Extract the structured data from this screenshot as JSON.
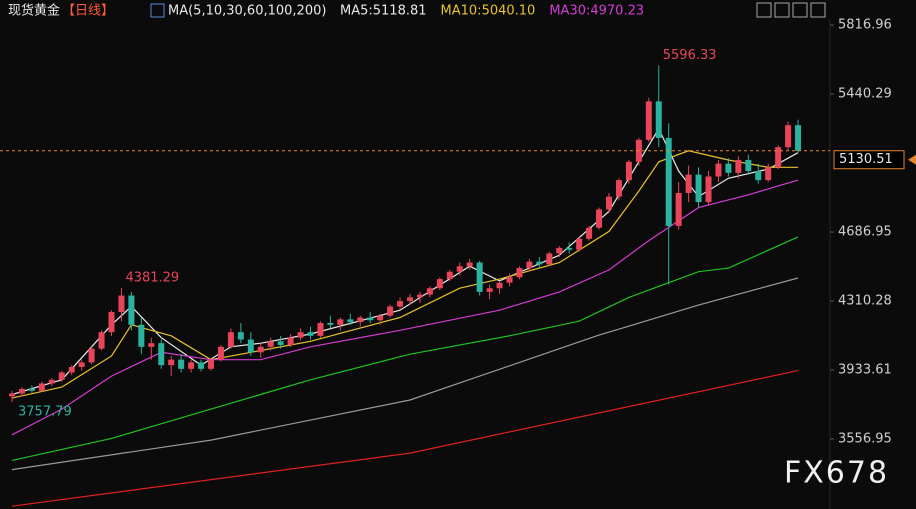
{
  "header": {
    "symbol": "现货黄金",
    "period": "【日线】",
    "ma_title": "MA(5,10,30,60,100,200)",
    "ma_values": [
      "MA5:5118.81",
      "MA10:5040.10",
      "MA30:4970.23"
    ],
    "ma_value_colors": [
      "#e8e8e8",
      "#e8c22a",
      "#d43bd4"
    ]
  },
  "watermark": "FX678",
  "chart_data": {
    "type": "candlestick",
    "up_color": "#e8455a",
    "down_color": "#2ab3a0",
    "ylim": [
      3174.7,
      5953.4
    ],
    "yticks": [
      3556.95,
      3933.61,
      4310.28,
      4686.95,
      5440.29,
      5816.96
    ],
    "last_price": 5130.51,
    "annotations": [
      5596.33,
      4381.29,
      3757.79
    ],
    "ohlc": [
      [
        3790,
        3820,
        3757.79,
        3805
      ],
      [
        3805,
        3840,
        3790,
        3830
      ],
      [
        3830,
        3850,
        3810,
        3820
      ],
      [
        3820,
        3870,
        3815,
        3860
      ],
      [
        3860,
        3890,
        3845,
        3880
      ],
      [
        3880,
        3930,
        3870,
        3920
      ],
      [
        3920,
        3960,
        3905,
        3950
      ],
      [
        3950,
        3990,
        3930,
        3975
      ],
      [
        3975,
        4060,
        3965,
        4050
      ],
      [
        4050,
        4150,
        4040,
        4140
      ],
      [
        4140,
        4260,
        4120,
        4250
      ],
      [
        4250,
        4381.29,
        4200,
        4340
      ],
      [
        4340,
        4360,
        4150,
        4180
      ],
      [
        4180,
        4220,
        4020,
        4060
      ],
      [
        4060,
        4110,
        3990,
        4080
      ],
      [
        4080,
        4100,
        3940,
        3960
      ],
      [
        3960,
        4010,
        3900,
        3990
      ],
      [
        3990,
        4020,
        3920,
        3940
      ],
      [
        3940,
        3990,
        3920,
        3975
      ],
      [
        3975,
        3990,
        3925,
        3940
      ],
      [
        3940,
        4000,
        3930,
        3990
      ],
      [
        3990,
        4070,
        3980,
        4060
      ],
      [
        4060,
        4160,
        4050,
        4140
      ],
      [
        4140,
        4190,
        4080,
        4100
      ],
      [
        4100,
        4140,
        4010,
        4030
      ],
      [
        4030,
        4080,
        4000,
        4060
      ],
      [
        4060,
        4110,
        4040,
        4090
      ],
      [
        4090,
        4120,
        4050,
        4070
      ],
      [
        4070,
        4130,
        4060,
        4110
      ],
      [
        4110,
        4160,
        4095,
        4140
      ],
      [
        4140,
        4170,
        4100,
        4120
      ],
      [
        4120,
        4200,
        4110,
        4190
      ],
      [
        4190,
        4230,
        4160,
        4180
      ],
      [
        4180,
        4220,
        4150,
        4210
      ],
      [
        4210,
        4240,
        4180,
        4195
      ],
      [
        4195,
        4230,
        4170,
        4220
      ],
      [
        4220,
        4250,
        4190,
        4205
      ],
      [
        4205,
        4240,
        4180,
        4230
      ],
      [
        4230,
        4290,
        4220,
        4280
      ],
      [
        4280,
        4330,
        4260,
        4310
      ],
      [
        4310,
        4350,
        4290,
        4330
      ],
      [
        4330,
        4360,
        4300,
        4345
      ],
      [
        4345,
        4390,
        4330,
        4380
      ],
      [
        4380,
        4440,
        4370,
        4430
      ],
      [
        4430,
        4480,
        4420,
        4470
      ],
      [
        4470,
        4520,
        4450,
        4500
      ],
      [
        4500,
        4540,
        4480,
        4520
      ],
      [
        4520,
        4530,
        4340,
        4360
      ],
      [
        4360,
        4400,
        4320,
        4380
      ],
      [
        4380,
        4420,
        4350,
        4410
      ],
      [
        4410,
        4460,
        4390,
        4440
      ],
      [
        4440,
        4500,
        4430,
        4490
      ],
      [
        4490,
        4540,
        4470,
        4525
      ],
      [
        4525,
        4550,
        4490,
        4510
      ],
      [
        4510,
        4580,
        4500,
        4570
      ],
      [
        4570,
        4610,
        4550,
        4600
      ],
      [
        4600,
        4630,
        4570,
        4590
      ],
      [
        4590,
        4660,
        4580,
        4650
      ],
      [
        4650,
        4720,
        4640,
        4710
      ],
      [
        4710,
        4820,
        4700,
        4810
      ],
      [
        4810,
        4900,
        4790,
        4880
      ],
      [
        4880,
        4980,
        4860,
        4970
      ],
      [
        4970,
        5080,
        4950,
        5070
      ],
      [
        5070,
        5200,
        5050,
        5190
      ],
      [
        5190,
        5420,
        5180,
        5400
      ],
      [
        5400,
        5596.33,
        5150,
        5200
      ],
      [
        5200,
        5280,
        4400,
        4720
      ],
      [
        4720,
        4960,
        4700,
        4900
      ],
      [
        4900,
        5050,
        4850,
        5000
      ],
      [
        5000,
        5040,
        4820,
        4850
      ],
      [
        4850,
        5020,
        4830,
        4990
      ],
      [
        4990,
        5080,
        4960,
        5060
      ],
      [
        5060,
        5090,
        4990,
        5010
      ],
      [
        5010,
        5100,
        4980,
        5080
      ],
      [
        5080,
        5110,
        5000,
        5020
      ],
      [
        5020,
        5060,
        4950,
        4970
      ],
      [
        4970,
        5060,
        4960,
        5040
      ],
      [
        5040,
        5160,
        5030,
        5150
      ],
      [
        5150,
        5290,
        5130,
        5270
      ],
      [
        5270,
        5300,
        5120,
        5130.51
      ]
    ],
    "lines": [
      {
        "color": "#e8e8e8",
        "x": [
          0,
          5,
          10,
          12,
          15,
          19,
          22,
          25,
          30,
          39,
          46,
          49,
          55,
          60,
          63,
          65,
          67,
          69,
          72,
          76,
          79
        ],
        "values": [
          3800,
          3880,
          4180,
          4280,
          4110,
          3960,
          4060,
          4080,
          4130,
          4260,
          4500,
          4420,
          4560,
          4800,
          5070,
          5250,
          5020,
          4880,
          4980,
          5030,
          5120
        ]
      },
      {
        "color": "#e8c22a",
        "x": [
          0,
          5,
          10,
          12,
          16,
          20,
          25,
          30,
          39,
          45,
          49,
          55,
          60,
          63,
          65,
          68,
          72,
          76,
          79
        ],
        "values": [
          3780,
          3840,
          4010,
          4180,
          4120,
          3990,
          4040,
          4090,
          4220,
          4380,
          4430,
          4520,
          4690,
          4910,
          5070,
          5130,
          5080,
          5040,
          5040
        ]
      },
      {
        "color": "#d43bd4",
        "x": [
          0,
          5,
          10,
          15,
          20,
          25,
          30,
          39,
          49,
          55,
          60,
          64,
          69,
          74,
          79
        ],
        "values": [
          3580,
          3720,
          3900,
          4030,
          3990,
          3990,
          4060,
          4150,
          4260,
          4360,
          4480,
          4640,
          4820,
          4890,
          4970
        ]
      },
      {
        "color": "#1fc21f",
        "x": [
          0,
          10,
          20,
          30,
          40,
          50,
          57,
          62,
          66,
          69,
          72,
          79
        ],
        "values": [
          3440,
          3560,
          3720,
          3880,
          4020,
          4120,
          4200,
          4330,
          4410,
          4470,
          4490,
          4660
        ]
      },
      {
        "color": "#9a9a9a",
        "x": [
          0,
          20,
          40,
          59,
          69,
          79
        ],
        "values": [
          3390,
          3551,
          3770,
          4124,
          4288,
          4436
        ]
      },
      {
        "color": "#e02020",
        "x": [
          0,
          40,
          79
        ],
        "values": [
          3190,
          3480,
          3930
        ]
      }
    ]
  }
}
